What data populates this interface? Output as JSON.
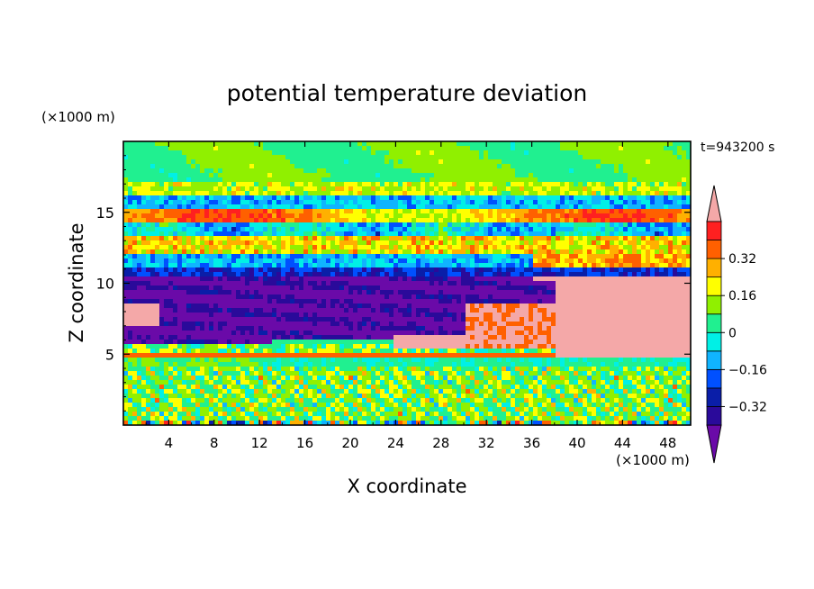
{
  "chart_data": {
    "type": "heatmap",
    "title": "potential temperature deviation",
    "xlabel": "X coordinate",
    "ylabel": "Z coordinate",
    "x_unit": "(×1000 m)",
    "y_unit": "(×1000 m)",
    "time_label": "t=943200 s",
    "xlim": [
      0,
      50
    ],
    "ylim": [
      0,
      20
    ],
    "x_ticks": [
      "4",
      "8",
      "12",
      "16",
      "20",
      "24",
      "28",
      "32",
      "36",
      "40",
      "44",
      "48"
    ],
    "y_ticks": [
      "5",
      "10",
      "15"
    ],
    "colorbar": {
      "levels": [
        -0.48,
        -0.4,
        -0.32,
        -0.24,
        -0.16,
        -0.08,
        0,
        0.08,
        0.16,
        0.24,
        0.32,
        0.4,
        0.48
      ],
      "tick_labels": [
        "0.32",
        "0.16",
        "0",
        "−0.16",
        "−0.32"
      ],
      "colors": [
        "#6a0aa8",
        "#2a0a9a",
        "#0a1ea8",
        "#0050ff",
        "#10b4ff",
        "#00f0e6",
        "#20f090",
        "#90f000",
        "#ffff00",
        "#ffb000",
        "#ff6000",
        "#ff2020",
        "#f4a8a8"
      ],
      "extend": "both"
    }
  }
}
